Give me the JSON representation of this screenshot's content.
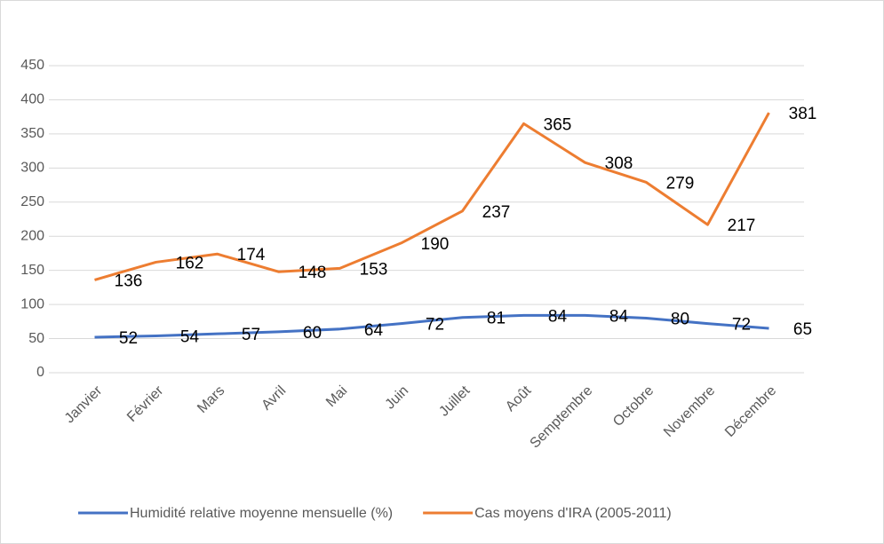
{
  "chart_data": {
    "type": "line",
    "categories": [
      "Janvier",
      "Février",
      "Mars",
      "Avril",
      "Mai",
      "Juin",
      "Juillet",
      "Août",
      "Semptembre",
      "Octobre",
      "Novembre",
      "Décembre"
    ],
    "series": [
      {
        "name": "Humidité relative moyenne mensuelle (%)",
        "color": "#4472c4",
        "values": [
          52,
          54,
          57,
          60,
          64,
          72,
          81,
          84,
          84,
          80,
          72,
          65
        ]
      },
      {
        "name": "Cas moyens d'IRA (2005-2011)",
        "color": "#ed7d31",
        "values": [
          136,
          162,
          174,
          148,
          153,
          190,
          237,
          365,
          308,
          279,
          217,
          381
        ]
      }
    ],
    "ylim": [
      0,
      450
    ],
    "yticks": [
      0,
      50,
      100,
      150,
      200,
      250,
      300,
      350,
      400,
      450
    ],
    "grid": true,
    "legend": "bottom"
  }
}
